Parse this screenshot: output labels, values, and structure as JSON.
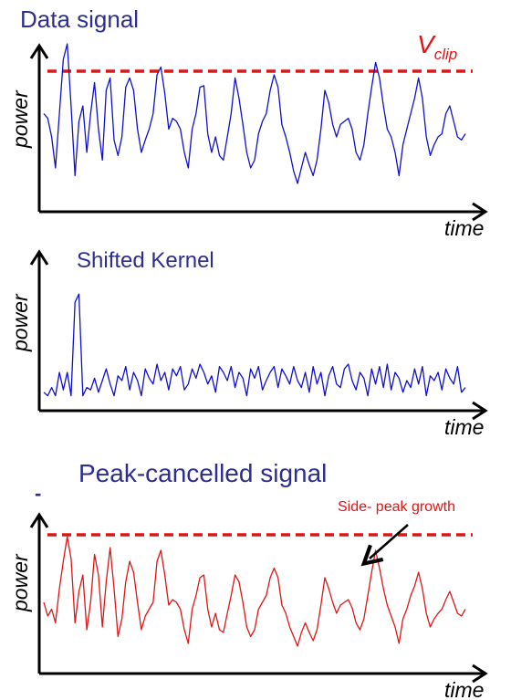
{
  "panels": [
    {
      "title": "Data signal",
      "ylabel": "power",
      "xlabel": "time",
      "line_color": "#1010cc",
      "clip_label": {
        "main": "V",
        "sub": "clip"
      },
      "values": [
        0.55,
        0.52,
        0.4,
        0.2,
        0.55,
        0.9,
        1.0,
        0.6,
        0.15,
        0.5,
        0.6,
        0.3,
        0.55,
        0.75,
        0.45,
        0.25,
        0.7,
        0.78,
        0.38,
        0.28,
        0.4,
        0.72,
        0.78,
        0.7,
        0.45,
        0.3,
        0.38,
        0.45,
        0.55,
        0.8,
        0.85,
        0.68,
        0.45,
        0.52,
        0.5,
        0.45,
        0.3,
        0.2,
        0.45,
        0.55,
        0.72,
        0.73,
        0.42,
        0.3,
        0.4,
        0.28,
        0.25,
        0.4,
        0.55,
        0.78,
        0.65,
        0.48,
        0.3,
        0.2,
        0.25,
        0.42,
        0.5,
        0.55,
        0.7,
        0.8,
        0.72,
        0.48,
        0.4,
        0.3,
        0.18,
        0.1,
        0.2,
        0.3,
        0.22,
        0.15,
        0.25,
        0.45,
        0.7,
        0.62,
        0.48,
        0.4,
        0.48,
        0.5,
        0.52,
        0.45,
        0.3,
        0.25,
        0.35,
        0.55,
        0.72,
        0.88,
        0.78,
        0.6,
        0.45,
        0.4,
        0.3,
        0.15,
        0.35,
        0.45,
        0.55,
        0.65,
        0.78,
        0.65,
        0.4,
        0.28,
        0.35,
        0.4,
        0.42,
        0.55,
        0.6,
        0.5,
        0.4,
        0.38,
        0.42
      ]
    },
    {
      "title": "Shifted Kernel",
      "ylabel": "power",
      "xlabel": "time",
      "line_color": "#1010cc",
      "values": [
        0.08,
        0.05,
        0.12,
        0.05,
        0.25,
        0.1,
        0.25,
        0.05,
        0.85,
        0.92,
        0.05,
        0.12,
        0.1,
        0.2,
        0.08,
        0.18,
        0.28,
        0.15,
        0.05,
        0.22,
        0.18,
        0.3,
        0.1,
        0.25,
        0.18,
        0.05,
        0.28,
        0.2,
        0.15,
        0.32,
        0.18,
        0.25,
        0.1,
        0.28,
        0.22,
        0.3,
        0.1,
        0.15,
        0.28,
        0.2,
        0.32,
        0.25,
        0.15,
        0.22,
        0.08,
        0.3,
        0.25,
        0.18,
        0.3,
        0.12,
        0.25,
        0.2,
        0.05,
        0.28,
        0.2,
        0.3,
        0.1,
        0.18,
        0.25,
        0.3,
        0.12,
        0.28,
        0.22,
        0.15,
        0.3,
        0.18,
        0.12,
        0.25,
        0.08,
        0.3,
        0.15,
        0.25,
        0.05,
        0.22,
        0.3,
        0.15,
        0.12,
        0.28,
        0.32,
        0.18,
        0.1,
        0.25,
        0.2,
        0.05,
        0.28,
        0.15,
        0.3,
        0.12,
        0.32,
        0.1,
        0.25,
        0.2,
        0.08,
        0.18,
        0.12,
        0.28,
        0.15,
        0.3,
        0.05,
        0.22,
        0.18,
        0.25,
        0.1,
        0.28,
        0.2,
        0.15,
        0.3,
        0.08,
        0.12
      ]
    },
    {
      "title": "Peak-cancelled signal",
      "title_mark": "-",
      "ylabel": "power",
      "xlabel": "time",
      "line_color": "#e01515",
      "annotation": "Side-  peak growth",
      "values": [
        0.4,
        0.3,
        0.35,
        0.25,
        0.5,
        0.7,
        0.88,
        0.72,
        0.25,
        0.48,
        0.6,
        0.2,
        0.4,
        0.75,
        0.6,
        0.22,
        0.55,
        0.8,
        0.5,
        0.15,
        0.28,
        0.55,
        0.7,
        0.62,
        0.4,
        0.2,
        0.3,
        0.35,
        0.4,
        0.7,
        0.78,
        0.6,
        0.38,
        0.42,
        0.4,
        0.35,
        0.2,
        0.1,
        0.35,
        0.45,
        0.58,
        0.6,
        0.35,
        0.22,
        0.32,
        0.2,
        0.18,
        0.32,
        0.45,
        0.6,
        0.55,
        0.4,
        0.22,
        0.15,
        0.2,
        0.35,
        0.4,
        0.45,
        0.58,
        0.65,
        0.58,
        0.38,
        0.32,
        0.22,
        0.15,
        0.08,
        0.18,
        0.25,
        0.18,
        0.12,
        0.2,
        0.38,
        0.58,
        0.5,
        0.4,
        0.32,
        0.38,
        0.4,
        0.42,
        0.36,
        0.25,
        0.2,
        0.28,
        0.45,
        0.62,
        0.78,
        0.65,
        0.5,
        0.38,
        0.3,
        0.22,
        0.1,
        0.28,
        0.35,
        0.45,
        0.52,
        0.62,
        0.5,
        0.32,
        0.22,
        0.28,
        0.32,
        0.35,
        0.42,
        0.48,
        0.4,
        0.32,
        0.3,
        0.35
      ]
    }
  ]
}
